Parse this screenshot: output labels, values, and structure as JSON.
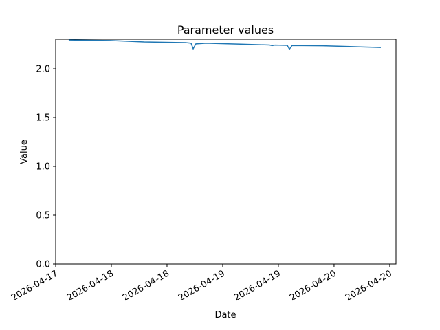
{
  "chart_data": {
    "type": "line",
    "title": "Parameter values",
    "x_label": "Date",
    "y_label": "Value",
    "x": [
      0.117,
      0.488,
      0.796,
      1.167,
      1.216,
      1.235,
      1.259,
      1.352,
      1.66,
      1.92,
      1.944,
      1.969,
      2.08,
      2.099,
      2.123,
      2.401,
      2.71,
      2.92
    ],
    "series": [
      {
        "color": "#1f77b4",
        "values": [
          2.295,
          2.29,
          2.275,
          2.268,
          2.262,
          2.205,
          2.255,
          2.262,
          2.252,
          2.243,
          2.237,
          2.242,
          2.24,
          2.2,
          2.238,
          2.235,
          2.225,
          2.218
        ]
      }
    ],
    "xlim": [
      0,
      3.056
    ],
    "xticks": [
      {
        "value": 0,
        "label": "2026-04-17"
      },
      {
        "value": 0.5,
        "label": "2026-04-18"
      },
      {
        "value": 1,
        "label": "2026-04-18"
      },
      {
        "value": 1.5,
        "label": "2026-04-19"
      },
      {
        "value": 2,
        "label": "2026-04-19"
      },
      {
        "value": 2.5,
        "label": "2026-04-20"
      },
      {
        "value": 3,
        "label": "2026-04-20"
      }
    ],
    "ylim": [
      0,
      2.303
    ],
    "yticks": [
      {
        "value": 0,
        "label": "0.0"
      },
      0.5,
      {
        "value": 1,
        "label": "1.0"
      },
      1.5,
      {
        "value": 2,
        "label": "2.0"
      }
    ]
  }
}
